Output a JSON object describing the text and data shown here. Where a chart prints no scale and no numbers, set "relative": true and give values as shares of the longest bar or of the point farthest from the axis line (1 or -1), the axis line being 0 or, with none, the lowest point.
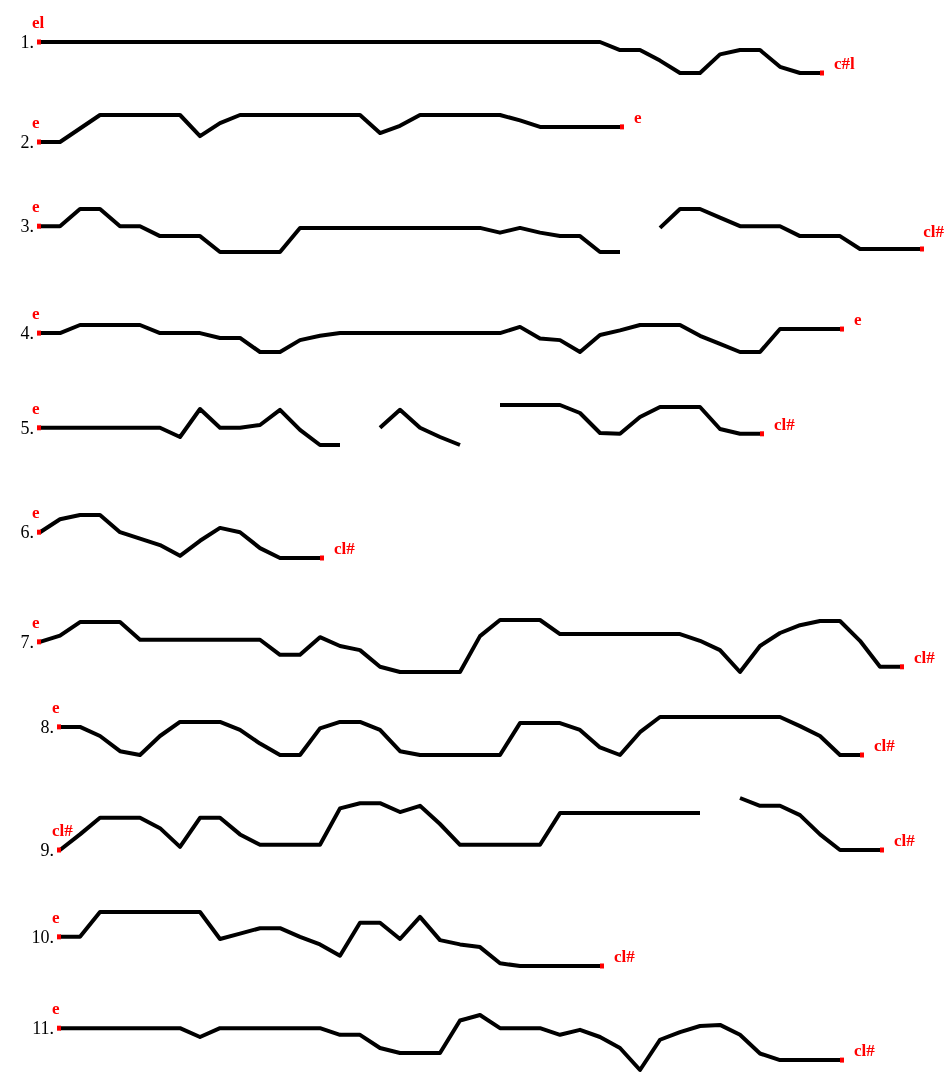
{
  "chart_data": [
    {
      "type": "line",
      "title": "1.",
      "relative": true,
      "color": "#000000",
      "annotations": [
        "el",
        "c#l"
      ],
      "categories": [
        null,
        null,
        null,
        null,
        null,
        null,
        null,
        null,
        null,
        null,
        null,
        null,
        null,
        null,
        null,
        null,
        null,
        null,
        null,
        null,
        null,
        null,
        null,
        null,
        null,
        null,
        null,
        null,
        null,
        null,
        null,
        null,
        null,
        null,
        null,
        null,
        null,
        null,
        null,
        null,
        null,
        null,
        null,
        null,
        null,
        null
      ],
      "values": [
        1,
        1,
        1,
        1,
        1,
        1,
        1,
        1,
        1,
        1,
        1,
        1,
        1,
        1,
        1,
        1,
        1,
        1,
        1,
        1,
        1,
        1,
        1,
        1,
        1,
        1,
        1,
        1,
        1,
        0.74,
        0.74,
        0.4,
        0,
        0,
        0.6,
        0.74,
        0.74,
        0.2,
        0,
        0,
        null,
        null,
        null,
        null,
        null,
        null
      ]
    },
    {
      "type": "line",
      "title": "2.",
      "relative": true,
      "color": "#000000",
      "annotations": [
        "e",
        "e"
      ],
      "categories": [
        null,
        null,
        null,
        null,
        null,
        null,
        null,
        null,
        null,
        null,
        null,
        null,
        null,
        null,
        null,
        null,
        null,
        null,
        null,
        null,
        null,
        null,
        null,
        null,
        null,
        null,
        null,
        null,
        null,
        null,
        null,
        null,
        null,
        null,
        null,
        null,
        null,
        null,
        null,
        null,
        null,
        null,
        null,
        null,
        null,
        null
      ],
      "values": [
        0,
        0,
        0.5,
        1,
        1,
        1,
        1,
        1,
        0.22,
        0.7,
        1,
        1,
        1,
        1,
        1,
        1,
        1,
        0.33,
        0.6,
        1,
        1,
        1,
        1,
        1,
        0.8,
        0.56,
        0.56,
        0.56,
        0.56,
        0.56,
        null,
        null,
        null,
        null,
        null,
        null,
        null,
        null,
        null,
        null,
        null,
        null,
        null,
        null,
        null,
        null
      ]
    },
    {
      "type": "line",
      "title": "3.",
      "relative": true,
      "color": "#000000",
      "annotations": [
        "e",
        "cl#"
      ],
      "categories": [
        null,
        null,
        null,
        null,
        null,
        null,
        null,
        null,
        null,
        null,
        null,
        null,
        null,
        null,
        null,
        null,
        null,
        null,
        null,
        null,
        null,
        null,
        null,
        null,
        null,
        null,
        null,
        null,
        null,
        null,
        null,
        null,
        null,
        null,
        null,
        null,
        null,
        null,
        null,
        null,
        null,
        null,
        null,
        null,
        null,
        null
      ],
      "values": [
        0.6,
        0.6,
        1,
        1,
        0.6,
        0.6,
        0.37,
        0.37,
        0.37,
        0,
        0,
        0,
        0,
        0.56,
        0.56,
        0.56,
        0.56,
        0.56,
        0.56,
        0.56,
        0.56,
        0.56,
        0.56,
        0.45,
        0.56,
        0.45,
        0.37,
        0.37,
        0,
        0,
        null,
        0.56,
        1,
        1,
        0.8,
        0.6,
        0.6,
        0.6,
        0.37,
        0.37,
        0.37,
        0.07,
        0.07,
        0.07,
        0.07,
        null
      ]
    },
    {
      "type": "line",
      "title": "4.",
      "relative": true,
      "color": "#000000",
      "annotations": [
        "e",
        "e"
      ],
      "categories": [
        null,
        null,
        null,
        null,
        null,
        null,
        null,
        null,
        null,
        null,
        null,
        null,
        null,
        null,
        null,
        null,
        null,
        null,
        null,
        null,
        null,
        null,
        null,
        null,
        null,
        null,
        null,
        null,
        null,
        null,
        null,
        null,
        null,
        null,
        null,
        null,
        null,
        null,
        null,
        null,
        null,
        null,
        null,
        null,
        null,
        null
      ],
      "values": [
        0.7,
        0.7,
        1,
        1,
        1,
        1,
        0.7,
        0.7,
        0.7,
        0.52,
        0.52,
        0,
        0,
        0.44,
        0.6,
        0.7,
        0.7,
        0.7,
        0.7,
        0.7,
        0.7,
        0.7,
        0.7,
        0.7,
        0.93,
        0.5,
        0.44,
        0,
        0.63,
        0.8,
        1,
        1,
        1,
        0.6,
        0.3,
        0,
        0,
        0.85,
        0.85,
        0.85,
        0.85,
        null,
        null,
        null,
        null,
        null
      ]
    },
    {
      "type": "line",
      "title": "5.",
      "relative": true,
      "color": "#000000",
      "annotations": [
        "e",
        "cl#"
      ],
      "categories": [
        null,
        null,
        null,
        null,
        null,
        null,
        null,
        null,
        null,
        null,
        null,
        null,
        null,
        null,
        null,
        null,
        null,
        null,
        null,
        null,
        null,
        null,
        null,
        null,
        null,
        null,
        null,
        null,
        null,
        null,
        null,
        null,
        null,
        null,
        null,
        null,
        null,
        null,
        null,
        null,
        null,
        null,
        null,
        null,
        null,
        null
      ],
      "values": [
        0.43,
        0.43,
        0.43,
        0.43,
        0.43,
        0.43,
        0.43,
        0.2,
        0.9,
        0.43,
        0.43,
        0.5,
        0.88,
        0.38,
        0,
        0,
        null,
        0.43,
        0.88,
        0.43,
        0.2,
        0,
        null,
        1,
        1,
        1,
        1,
        0.8,
        0.3,
        0.28,
        0.7,
        0.95,
        0.95,
        0.95,
        0.4,
        0.28,
        0.28,
        null,
        null,
        null,
        null,
        null,
        null,
        null,
        null,
        null
      ]
    },
    {
      "type": "line",
      "title": "6.",
      "relative": true,
      "color": "#000000",
      "annotations": [
        "e",
        "cl#"
      ],
      "categories": [
        null,
        null,
        null,
        null,
        null,
        null,
        null,
        null,
        null,
        null,
        null,
        null,
        null,
        null,
        null,
        null,
        null,
        null,
        null,
        null,
        null,
        null,
        null,
        null,
        null,
        null,
        null,
        null,
        null,
        null,
        null,
        null,
        null,
        null,
        null,
        null,
        null,
        null,
        null,
        null,
        null,
        null,
        null,
        null,
        null,
        null
      ],
      "values": [
        0.6,
        0.9,
        1,
        1,
        0.6,
        0.45,
        0.3,
        0.05,
        0.4,
        0.7,
        0.6,
        0.23,
        0,
        0,
        0,
        null,
        null,
        null,
        null,
        null,
        null,
        null,
        null,
        null,
        null,
        null,
        null,
        null,
        null,
        null,
        null,
        null,
        null,
        null,
        null,
        null,
        null,
        null,
        null,
        null,
        null,
        null,
        null,
        null,
        null,
        null
      ]
    },
    {
      "type": "line",
      "title": "7.",
      "relative": true,
      "color": "#000000",
      "annotations": [
        "e",
        "cl#"
      ],
      "categories": [
        null,
        null,
        null,
        null,
        null,
        null,
        null,
        null,
        null,
        null,
        null,
        null,
        null,
        null,
        null,
        null,
        null,
        null,
        null,
        null,
        null,
        null,
        null,
        null,
        null,
        null,
        null,
        null,
        null,
        null,
        null,
        null,
        null,
        null,
        null,
        null,
        null,
        null,
        null,
        null,
        null,
        null,
        null,
        null,
        null,
        null
      ],
      "values": [
        0.58,
        0.7,
        0.96,
        0.96,
        0.96,
        0.62,
        0.62,
        0.62,
        0.62,
        0.62,
        0.62,
        0.62,
        0.33,
        0.33,
        0.67,
        0.5,
        0.42,
        0.1,
        0,
        0,
        0,
        0,
        0.69,
        1,
        1,
        1,
        0.73,
        0.73,
        0.73,
        0.73,
        0.73,
        0.73,
        0.73,
        0.6,
        0.42,
        0,
        0.5,
        0.75,
        0.9,
        0.98,
        0.98,
        0.6,
        0.1,
        0.1,
        null,
        null
      ]
    },
    {
      "type": "line",
      "title": "8.",
      "relative": true,
      "color": "#000000",
      "annotations": [
        "e",
        "cl#"
      ],
      "categories": [
        null,
        null,
        null,
        null,
        null,
        null,
        null,
        null,
        null,
        null,
        null,
        null,
        null,
        null,
        null,
        null,
        null,
        null,
        null,
        null,
        null,
        null,
        null,
        null,
        null,
        null,
        null,
        null,
        null,
        null,
        null,
        null,
        null,
        null,
        null,
        null,
        null,
        null,
        null,
        null,
        null,
        null,
        null,
        null,
        null,
        null
      ],
      "values": [
        null,
        0.74,
        0.74,
        0.5,
        0.1,
        0,
        0.5,
        0.87,
        0.87,
        0.87,
        0.66,
        0.3,
        0,
        0,
        0.7,
        0.87,
        0.87,
        0.66,
        0.1,
        0,
        0,
        0,
        0,
        0,
        0.84,
        0.84,
        0.84,
        0.66,
        0.2,
        0,
        0.6,
        1,
        1,
        1,
        1,
        1,
        1,
        1,
        0.76,
        0.5,
        0,
        0,
        null,
        null,
        null,
        null
      ]
    },
    {
      "type": "line",
      "title": "9.",
      "relative": true,
      "color": "#000000",
      "annotations": [
        "cl#",
        "cl#"
      ],
      "categories": [
        null,
        null,
        null,
        null,
        null,
        null,
        null,
        null,
        null,
        null,
        null,
        null,
        null,
        null,
        null,
        null,
        null,
        null,
        null,
        null,
        null,
        null,
        null,
        null,
        null,
        null,
        null,
        null,
        null,
        null,
        null,
        null,
        null,
        null,
        null,
        null,
        null,
        null,
        null,
        null,
        null,
        null,
        null,
        null,
        null,
        null
      ],
      "values": [
        null,
        0,
        0.3,
        0.62,
        0.62,
        0.62,
        0.42,
        0.06,
        0.62,
        0.62,
        0.3,
        0.1,
        0.1,
        0.1,
        0.1,
        0.8,
        0.9,
        0.9,
        0.73,
        0.85,
        0.5,
        0.1,
        0.1,
        0.1,
        0.1,
        0.1,
        0.71,
        0.71,
        0.71,
        0.71,
        0.71,
        0.71,
        0.71,
        0.71,
        null,
        1,
        0.85,
        0.85,
        0.67,
        0.3,
        0,
        0,
        0,
        null,
        null,
        null
      ]
    },
    {
      "type": "line",
      "title": "10.",
      "relative": true,
      "color": "#000000",
      "annotations": [
        "e",
        "cl#"
      ],
      "categories": [
        null,
        null,
        null,
        null,
        null,
        null,
        null,
        null,
        null,
        null,
        null,
        null,
        null,
        null,
        null,
        null,
        null,
        null,
        null,
        null,
        null,
        null,
        null,
        null,
        null,
        null,
        null,
        null,
        null,
        null,
        null,
        null,
        null,
        null,
        null,
        null,
        null,
        null,
        null,
        null,
        null,
        null,
        null,
        null,
        null,
        null
      ],
      "values": [
        null,
        0.54,
        0.54,
        1,
        1,
        1,
        1,
        1,
        1,
        0.5,
        0.6,
        0.7,
        0.7,
        0.54,
        0.4,
        0.19,
        0.8,
        0.8,
        0.5,
        0.91,
        0.48,
        0.4,
        0.35,
        0.05,
        0,
        0,
        0,
        0,
        0,
        null,
        null,
        null,
        null,
        null,
        null,
        null,
        null,
        null,
        null,
        null,
        null,
        null,
        null,
        null,
        null,
        null
      ]
    },
    {
      "type": "line",
      "title": "11.",
      "relative": true,
      "color": "#000000",
      "annotations": [
        "e",
        "cl#"
      ],
      "categories": [
        null,
        null,
        null,
        null,
        null,
        null,
        null,
        null,
        null,
        null,
        null,
        null,
        null,
        null,
        null,
        null,
        null,
        null,
        null,
        null,
        null,
        null,
        null,
        null,
        null,
        null,
        null,
        null,
        null,
        null,
        null,
        null,
        null,
        null,
        null,
        null,
        null,
        null,
        null,
        null,
        null,
        null,
        null,
        null,
        null,
        null
      ],
      "values": [
        null,
        0.76,
        0.76,
        0.76,
        0.76,
        0.76,
        0.76,
        0.76,
        0.6,
        0.76,
        0.76,
        0.76,
        0.76,
        0.76,
        0.76,
        0.64,
        0.64,
        0.4,
        0.31,
        0.31,
        0.31,
        0.9,
        1,
        0.76,
        0.76,
        0.76,
        0.64,
        0.73,
        0.6,
        0.4,
        0,
        0.55,
        0.69,
        0.8,
        0.82,
        0.64,
        0.3,
        0.18,
        0.18,
        0.18,
        0.18,
        null,
        null,
        null,
        null,
        null
      ]
    }
  ]
}
